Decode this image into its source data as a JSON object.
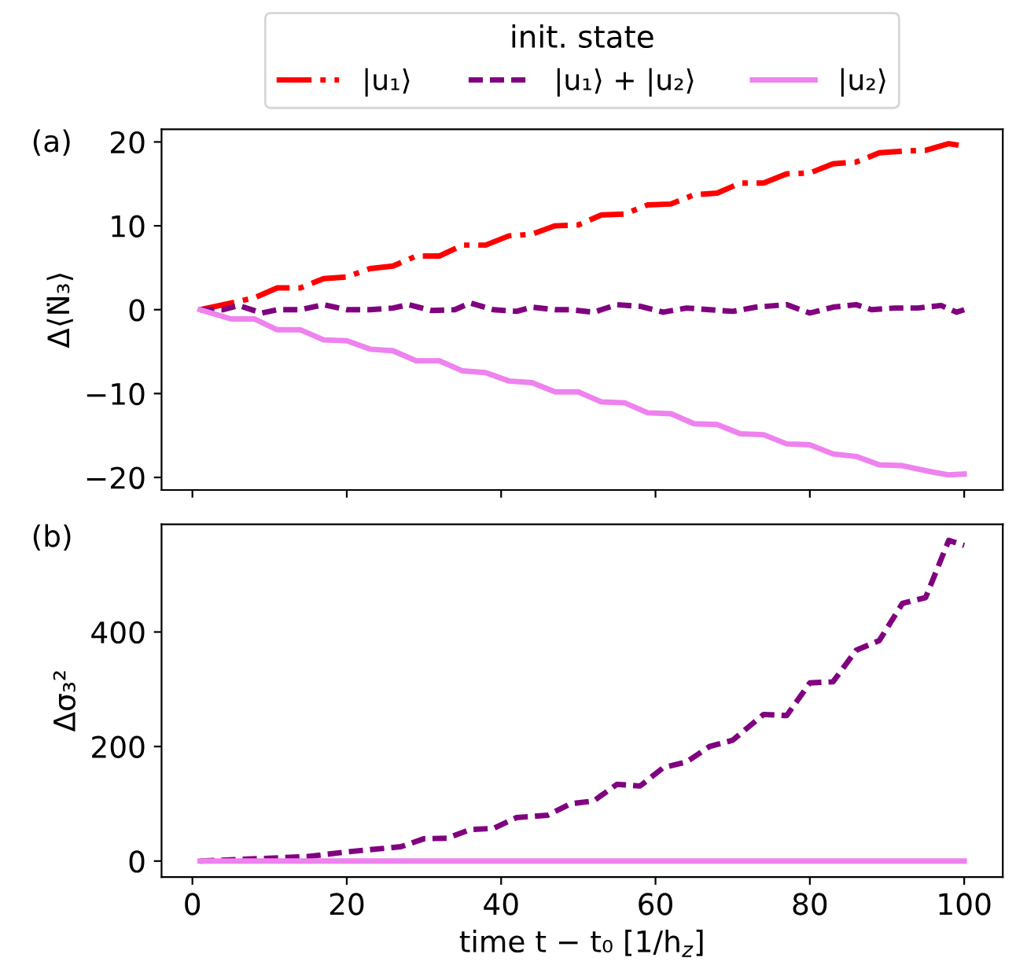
{
  "chart_data": [
    {
      "type": "line",
      "xlim": [
        -4,
        105
      ],
      "xticks": [
        0,
        20,
        40,
        60,
        80,
        100
      ],
      "ylim": [
        -21.5,
        21.5
      ],
      "yticks": [
        {
          "value": -20,
          "label": "−20"
        },
        {
          "value": -10,
          "label": "−10"
        },
        0,
        10,
        20
      ],
      "ylabel": "Δ⟨N̈₃⟩",
      "tick_labels": "y",
      "legend": "top",
      "legend_title": "init. state",
      "grid": false,
      "annotations": [
        "(a)"
      ],
      "series": [
        {
          "name": "|u₁⟩",
          "color": "#ff0000",
          "line_style": "dashdot",
          "x": [
            1,
            4,
            8,
            11,
            14,
            17,
            20,
            23,
            26,
            29,
            32,
            35,
            38,
            41,
            44,
            47,
            50,
            53,
            56,
            59,
            62,
            65,
            68,
            71,
            74,
            77,
            80,
            83,
            86,
            89,
            92,
            95,
            98,
            100
          ],
          "values": [
            0,
            0.6,
            1.4,
            2.6,
            2.6,
            3.7,
            3.9,
            4.9,
            5.2,
            6.4,
            6.4,
            7.7,
            7.7,
            8.8,
            9.0,
            10.0,
            10.1,
            11.3,
            11.4,
            12.5,
            12.6,
            13.7,
            13.9,
            15.1,
            15.1,
            16.2,
            16.3,
            17.4,
            17.6,
            18.7,
            18.9,
            19.0,
            19.8,
            19.5
          ]
        },
        {
          "name": "|u₁⟩ + |u₂⟩",
          "color": "#800080",
          "line_style": "dashed",
          "x": [
            1,
            4,
            6,
            9,
            11,
            14,
            17,
            20,
            23,
            26,
            28,
            31,
            34,
            36,
            39,
            42,
            44,
            47,
            49,
            52,
            55,
            58,
            61,
            64,
            67,
            70,
            73,
            77,
            80,
            83,
            86,
            88,
            91,
            94,
            97,
            99,
            100
          ],
          "values": [
            0,
            0,
            0.5,
            -0.4,
            0,
            0,
            0.6,
            0,
            0,
            0.2,
            0.6,
            -0.1,
            0,
            0.8,
            0,
            -0.2,
            0.3,
            0,
            0,
            -0.3,
            0.6,
            0.4,
            -0.3,
            0.2,
            0,
            -0.2,
            0.3,
            0.6,
            -0.4,
            0.3,
            0.6,
            0,
            0.2,
            0.2,
            0.5,
            -0.3,
            0
          ]
        },
        {
          "name": "|u₂⟩",
          "color": "#ee82ee",
          "line_style": "solid",
          "x": [
            1,
            5,
            8,
            11,
            14,
            17,
            20,
            23,
            26,
            29,
            32,
            35,
            38,
            41,
            44,
            47,
            50,
            53,
            56,
            59,
            62,
            65,
            68,
            71,
            74,
            77,
            80,
            83,
            86,
            89,
            92,
            95,
            98,
            100
          ],
          "values": [
            0,
            -1.1,
            -1.1,
            -2.4,
            -2.4,
            -3.6,
            -3.7,
            -4.7,
            -4.9,
            -6.1,
            -6.1,
            -7.3,
            -7.5,
            -8.5,
            -8.7,
            -9.8,
            -9.8,
            -11.0,
            -11.1,
            -12.3,
            -12.4,
            -13.6,
            -13.7,
            -14.8,
            -14.9,
            -16.0,
            -16.1,
            -17.2,
            -17.5,
            -18.5,
            -18.6,
            -19.2,
            -19.7,
            -19.6
          ]
        }
      ]
    },
    {
      "type": "line",
      "xlim": [
        -4,
        105
      ],
      "xticks": [
        0,
        20,
        40,
        60,
        80,
        100
      ],
      "ylim": [
        -28,
        588
      ],
      "yticks": [
        0,
        200,
        400
      ],
      "ylabel": "Δσ₃²",
      "xlabel": "time t − t₀ [1/h$_{z}$]",
      "grid": false,
      "legend": false,
      "annotations": [
        "(b)"
      ],
      "series": [
        {
          "color": "#800080",
          "line_style": "dashed",
          "x": [
            1,
            10,
            15,
            20,
            27,
            30,
            33,
            36,
            39,
            42,
            46,
            49,
            52,
            55,
            58,
            61,
            64,
            67,
            70,
            74,
            77,
            80,
            83,
            86,
            89,
            92,
            95,
            98,
            100
          ],
          "values": [
            0,
            5,
            8,
            16,
            25,
            39,
            40,
            55,
            57,
            76,
            80,
            100,
            105,
            134,
            131,
            163,
            173,
            200,
            211,
            256,
            254,
            311,
            313,
            368,
            385,
            450,
            460,
            560,
            551
          ]
        },
        {
          "color": "#ee82ee",
          "line_style": "solid",
          "x": [
            1,
            100
          ],
          "values": [
            0,
            0
          ]
        }
      ]
    }
  ]
}
